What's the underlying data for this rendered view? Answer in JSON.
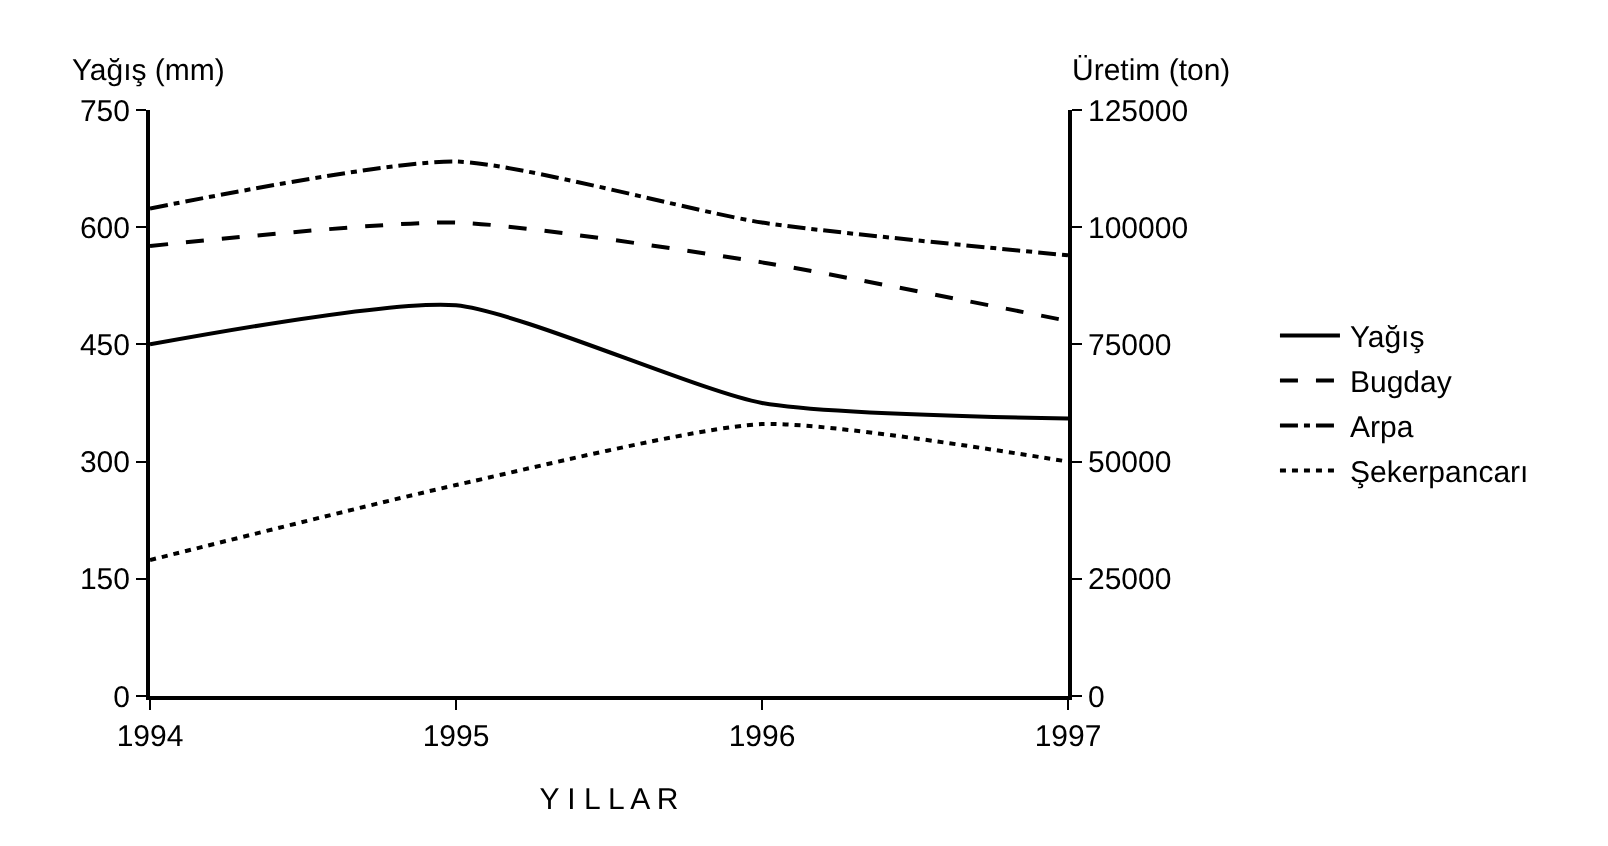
{
  "chart_data": {
    "type": "line",
    "xlabel": "Y I L L A R",
    "ylabel": "Yağış (mm)",
    "y2label": "Üretim (ton)",
    "categories": [
      "1994",
      "1995",
      "1996",
      "1997"
    ],
    "series": [
      {
        "name": "Yağış",
        "color": "#000000",
        "line_style": "solid",
        "values": [
          450,
          500,
          375,
          355
        ]
      },
      {
        "name": "Bugday",
        "color": "#000000",
        "line_style": "dashed",
        "axis": "y2",
        "values": [
          96000,
          101000,
          92500,
          80000
        ]
      },
      {
        "name": "Arpa",
        "color": "#000000",
        "line_style": "dashdot",
        "axis": "y2",
        "values": [
          104000,
          114000,
          101000,
          94000
        ]
      },
      {
        "name": "Şekerpancarı",
        "color": "#000000",
        "line_style": "dotted",
        "axis": "y2",
        "values": [
          29000,
          45000,
          58000,
          50000
        ]
      }
    ],
    "ylim": [
      0,
      750
    ],
    "yticks": [
      0,
      150,
      300,
      450,
      600,
      750
    ],
    "y2lim": [
      0,
      125000
    ],
    "y2ticks": [
      0,
      25000,
      50000,
      75000,
      100000,
      125000
    ],
    "legend": "right",
    "marker": "none"
  }
}
